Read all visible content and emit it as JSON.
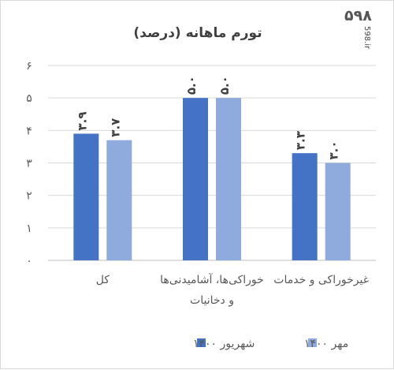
{
  "watermark": {
    "logo": "۵۹۸",
    "site": "598.ir"
  },
  "chart_data": {
    "type": "bar",
    "title": "تورم ماهانه (درصد)",
    "categories": [
      "کل",
      "خوراکی‌ها، آشامیدنی‌ها و دخانیات",
      "غیرخوراکی و خدمات"
    ],
    "category_lines": [
      [
        "کل"
      ],
      [
        "خوراکی‌ها، آشامیدنی‌ها",
        "و دخانیات"
      ],
      [
        "غیرخوراکی و خدمات"
      ]
    ],
    "series": [
      {
        "name": "شهریور ۱۴۰۰",
        "values": [
          3.9,
          5.0,
          3.3
        ],
        "labels": [
          "۳.۹",
          "۵.۰",
          "۳.۳"
        ],
        "color": "#4472c4"
      },
      {
        "name": "مهر ۱۴۰۰",
        "values": [
          3.7,
          5.0,
          3.0
        ],
        "labels": [
          "۳.۷",
          "۵.۰",
          "۳.۰"
        ],
        "color": "#8faadc"
      }
    ],
    "ylim": [
      0,
      6
    ],
    "yticks": [
      0,
      1,
      2,
      3,
      4,
      5,
      6
    ],
    "ytick_labels": [
      "۰",
      "۱",
      "۲",
      "۳",
      "۴",
      "۵",
      "۶"
    ],
    "grid": true,
    "legend_position": "bottom"
  }
}
